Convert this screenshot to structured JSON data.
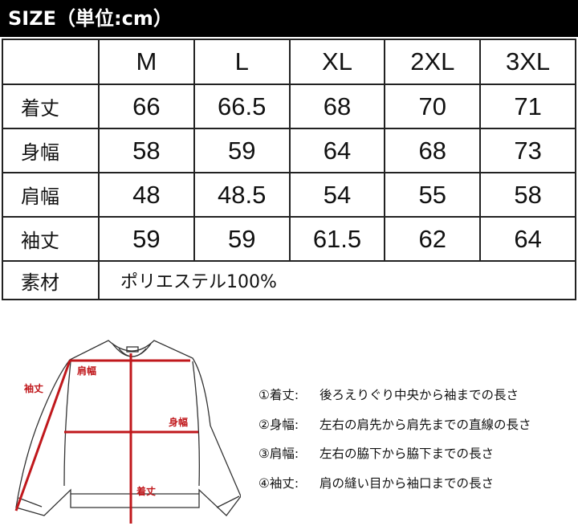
{
  "title": "SIZE（単位:cm）",
  "table": {
    "sizes": [
      "M",
      "L",
      "XL",
      "2XL",
      "3XL"
    ],
    "rows": [
      {
        "label": "着丈",
        "values": [
          "66",
          "66.5",
          "68",
          "70",
          "71"
        ]
      },
      {
        "label": "身幅",
        "values": [
          "58",
          "59",
          "64",
          "68",
          "73"
        ]
      },
      {
        "label": "肩幅",
        "values": [
          "48",
          "48.5",
          "54",
          "55",
          "58"
        ]
      },
      {
        "label": "袖丈",
        "values": [
          "59",
          "59",
          "61.5",
          "62",
          "64"
        ]
      }
    ],
    "material_label": "素材",
    "material_value": "ポリエステル100%"
  },
  "diagram": {
    "labels": {
      "shoulder": "肩幅",
      "sleeve": "袖丈",
      "chest": "身幅",
      "length": "着丈"
    },
    "line_color": "#c0181c"
  },
  "legend": [
    {
      "key": "①着丈:",
      "text": "後ろえりぐり中央から袖までの長さ"
    },
    {
      "key": "②身幅:",
      "text": "左右の肩先から肩先までの直線の長さ"
    },
    {
      "key": "③肩幅:",
      "text": "左右の脇下から脇下までの長さ"
    },
    {
      "key": "④袖丈:",
      "text": "肩の縫い目から袖口までの長さ"
    }
  ]
}
